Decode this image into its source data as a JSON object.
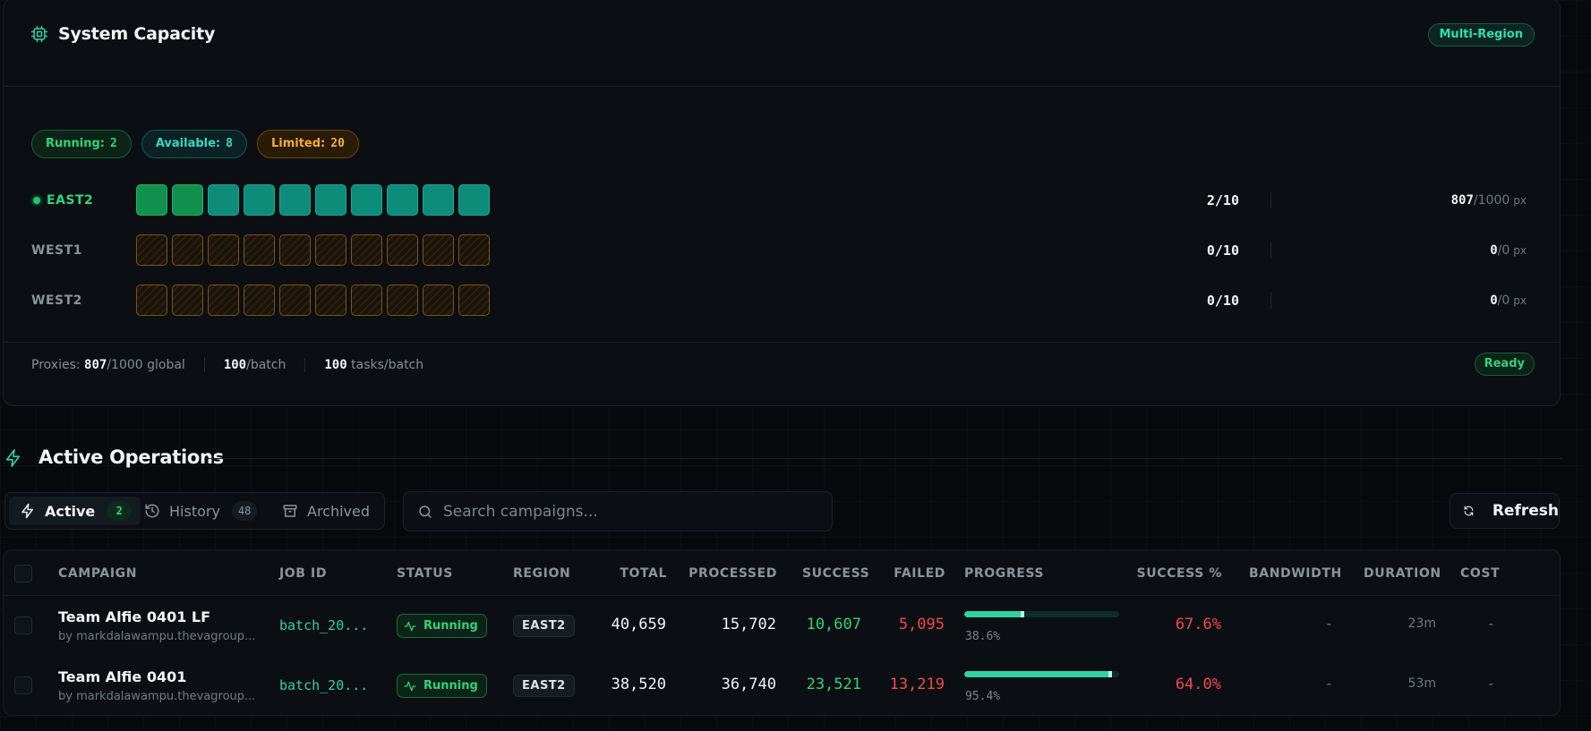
{
  "capacity": {
    "title": "System Capacity",
    "icon": "cpu-icon",
    "region_mode": "Multi-Region",
    "pills": {
      "running_label": "Running:",
      "running_value": "2",
      "available_label": "Available:",
      "available_value": "8",
      "limited_label": "Limited:",
      "limited_value": "20"
    },
    "regions": [
      {
        "name": "EAST2",
        "active": true,
        "slots_used": "2/10",
        "px_used": "807",
        "px_total": "/1000",
        "px_unit": "px"
      },
      {
        "name": "WEST1",
        "active": false,
        "slots_used": "0/10",
        "px_used": "0",
        "px_total": "/0",
        "px_unit": "px"
      },
      {
        "name": "WEST2",
        "active": false,
        "slots_used": "0/10",
        "px_used": "0",
        "px_total": "/0",
        "px_unit": "px"
      }
    ],
    "footer": {
      "proxies_label": "Proxies:",
      "proxies_used": "807",
      "proxies_total": "/1000 global",
      "batch_value": "100",
      "batch_unit": "/batch",
      "tasks_value": "100",
      "tasks_unit": "tasks/batch",
      "status": "Ready"
    },
    "colors": {
      "running": "#12904e",
      "available": "#0e8c7a",
      "limited": "#7c5411"
    }
  },
  "operations": {
    "title": "Active Operations",
    "tabs": [
      {
        "label": "Active",
        "count": "2",
        "icon": "zap-icon"
      },
      {
        "label": "History",
        "count": "48",
        "icon": "history-icon"
      },
      {
        "label": "Archived",
        "icon": "archive-icon"
      }
    ],
    "search_placeholder": "Search campaigns...",
    "refresh_label": "Refresh"
  },
  "table": {
    "columns": [
      "CAMPAIGN",
      "JOB ID",
      "STATUS",
      "REGION",
      "TOTAL",
      "PROCESSED",
      "SUCCESS",
      "FAILED",
      "PROGRESS",
      "SUCCESS %",
      "BANDWIDTH",
      "DURATION",
      "COST"
    ],
    "rows": [
      {
        "name": "Team Alfie 0401 LF",
        "by": "by markdalawampu.thevagroup...",
        "job_id": "batch_20...",
        "status": "Running",
        "region": "EAST2",
        "total": "40,659",
        "processed": "15,702",
        "success": "10,607",
        "failed": "5,095",
        "progress": 38.6,
        "progress_label": "38.6%",
        "success_pct": "67.6%",
        "bandwidth": "-",
        "duration": "23m",
        "cost": "-"
      },
      {
        "name": "Team Alfie 0401",
        "by": "by markdalawampu.thevagroup...",
        "job_id": "batch_20...",
        "status": "Running",
        "region": "EAST2",
        "total": "38,520",
        "processed": "36,740",
        "success": "23,521",
        "failed": "13,219",
        "progress": 95.4,
        "progress_label": "95.4%",
        "success_pct": "64.0%",
        "bandwidth": "-",
        "duration": "53m",
        "cost": "-"
      }
    ]
  }
}
